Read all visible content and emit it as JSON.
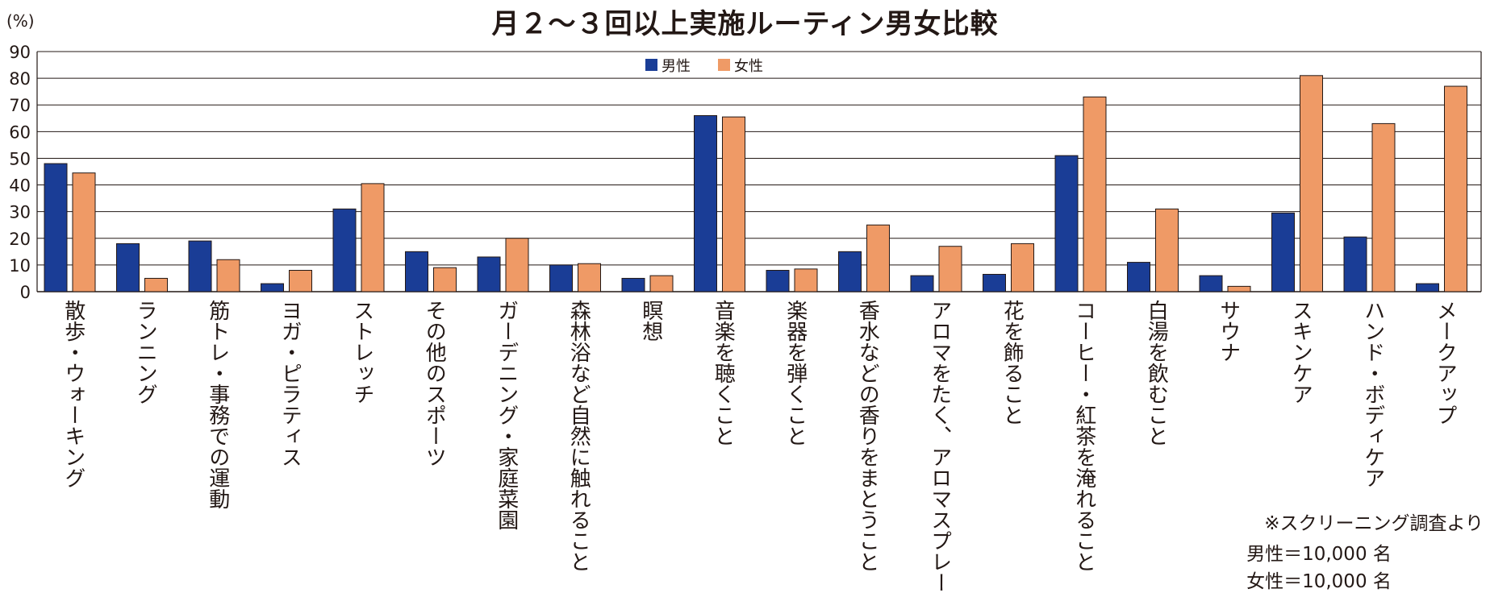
{
  "chart_data": {
    "type": "bar",
    "title": "月２～３回以上実施ルーティン男女比較",
    "ylabel": "(%)",
    "ylim": [
      0,
      90
    ],
    "yticks": [
      0,
      10,
      20,
      30,
      40,
      50,
      60,
      70,
      80,
      90
    ],
    "grid": true,
    "legend_position": "top-center",
    "categories": [
      "散歩・ウォーキング",
      "ランニング",
      "筋トレ・事務での運動",
      "ヨガ・ピラティス",
      "ストレッチ",
      "その他のスポーツ",
      "ガーデニング・家庭菜園",
      "森林浴など自然に触れること",
      "瞑想",
      "音楽を聴くこと",
      "楽器を弾くこと",
      "香水などの香りをまとうこと",
      "アロマをたく、アロマスプレー",
      "花を飾ること",
      "コーヒー・紅茶を淹れること",
      "白湯を飲むこと",
      "サウナ",
      "スキンケア",
      "ハンド・ボディケア",
      "メークアップ"
    ],
    "series": [
      {
        "name": "男性",
        "color": "#1a3d96",
        "values": [
          48,
          18,
          19,
          3,
          31,
          15,
          13,
          10,
          5,
          66,
          8,
          15,
          6,
          6.5,
          51,
          11,
          6,
          29.5,
          20.5,
          3
        ]
      },
      {
        "name": "女性",
        "color": "#ef9a66",
        "values": [
          44.5,
          5,
          12,
          8,
          40.5,
          9,
          20,
          10.5,
          6,
          65.5,
          8.5,
          25,
          17,
          18,
          73,
          31,
          2,
          81,
          63,
          77
        ]
      }
    ]
  },
  "notes": {
    "line1": "※スクリーニング調査より",
    "line2": "男性＝10,000 名",
    "line3": "女性＝10,000 名"
  }
}
